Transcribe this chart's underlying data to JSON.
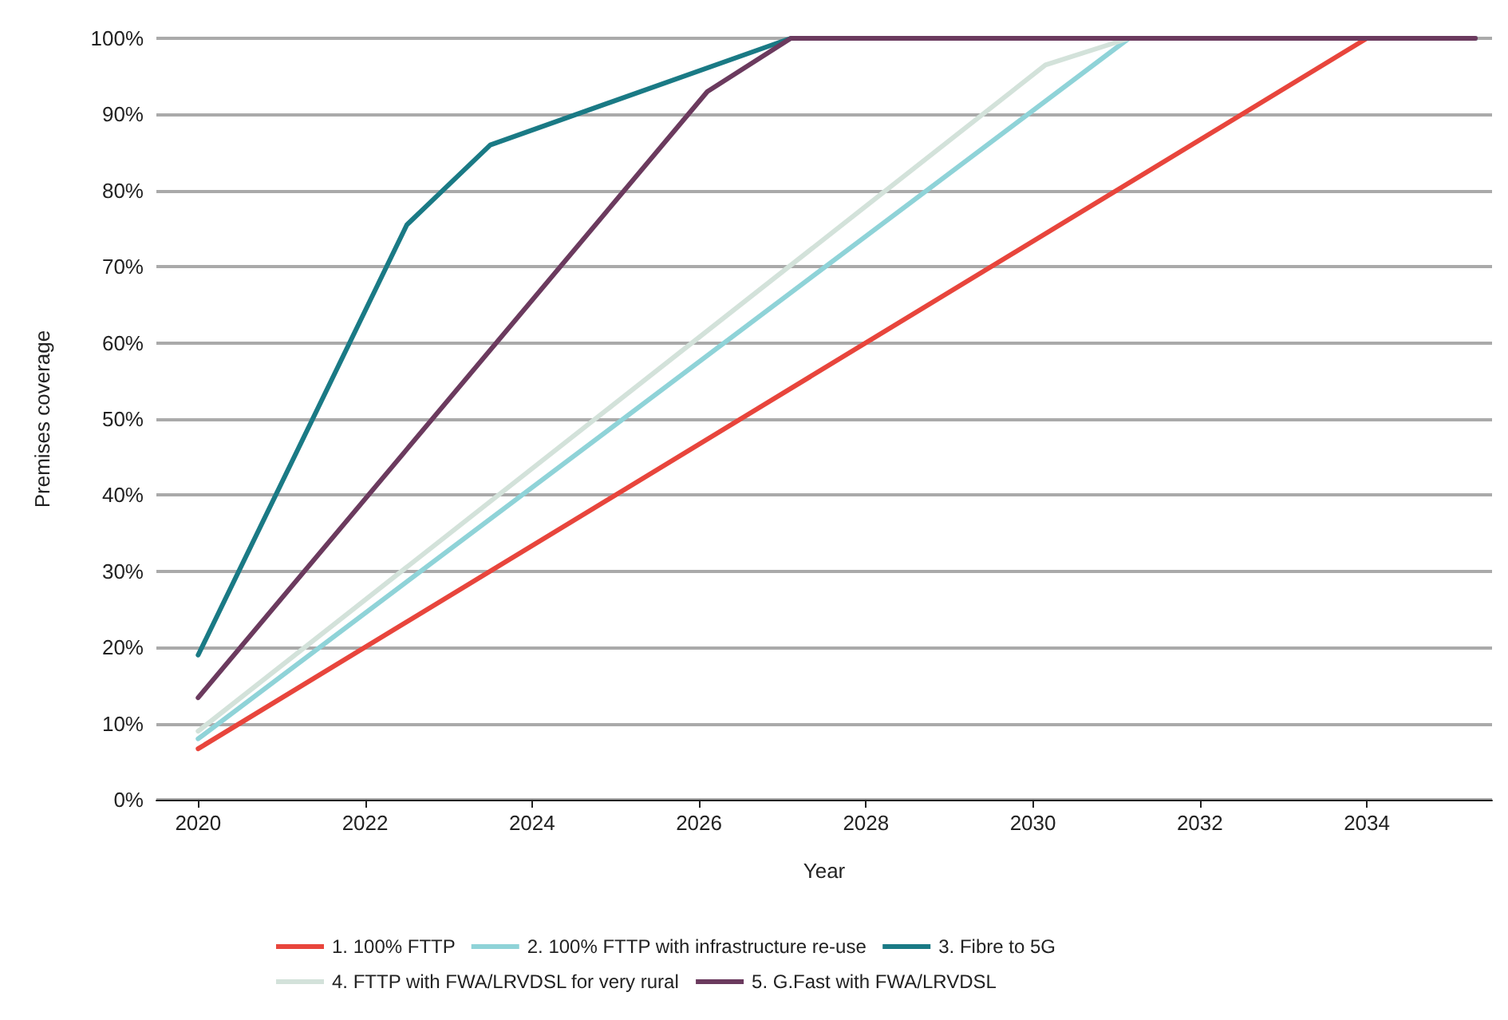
{
  "chart_data": {
    "type": "line",
    "xlabel": "Year",
    "ylabel": "Premises coverage",
    "xlim": [
      2019.5,
      2035.5
    ],
    "xticks": [
      2020,
      2022,
      2024,
      2026,
      2028,
      2030,
      2032,
      2034
    ],
    "ylim": [
      0,
      100
    ],
    "yticks": [
      {
        "value": 0,
        "label": "0%"
      },
      {
        "value": 10,
        "label": "10%"
      },
      {
        "value": 20,
        "label": "20%"
      },
      {
        "value": 30,
        "label": "30%"
      },
      {
        "value": 40,
        "label": "40%"
      },
      {
        "value": 50,
        "label": "50%"
      },
      {
        "value": 60,
        "label": "60%"
      },
      {
        "value": 70,
        "label": "70%"
      },
      {
        "value": 80,
        "label": "80%"
      },
      {
        "value": 90,
        "label": "90%"
      },
      {
        "value": 100,
        "label": "100%"
      }
    ],
    "grid": "y",
    "legend": "bottom",
    "marker": "none",
    "line_style": "solid",
    "series": [
      {
        "name": "1. 100% FTTP",
        "color": "#e8453c",
        "x": [
          2020,
          2034
        ],
        "values": [
          6.7,
          100
        ]
      },
      {
        "name": "2. 100% FTTP with infrastructure re-use",
        "color": "#8fd3d8",
        "x": [
          2020,
          2031.15,
          2035.3
        ],
        "values": [
          8,
          100,
          100
        ]
      },
      {
        "name": "3. Fibre to 5G",
        "color": "#1a7a85",
        "x": [
          2020,
          2022.5,
          2023.5,
          2027.1,
          2035.3
        ],
        "values": [
          19,
          75.5,
          86,
          100,
          100
        ]
      },
      {
        "name": "4. FTTP with FWA/LRVDSL for very rural",
        "color": "#d3e2da",
        "x": [
          2020,
          2030.15,
          2031.15,
          2035.3
        ],
        "values": [
          9,
          96.5,
          100,
          100
        ]
      },
      {
        "name": "5. G.Fast with FWA/LRVDSL",
        "color": "#6b3a5e",
        "x": [
          2020,
          2026.1,
          2027.1,
          2035.3
        ],
        "values": [
          13.4,
          93,
          100,
          100
        ]
      }
    ]
  }
}
